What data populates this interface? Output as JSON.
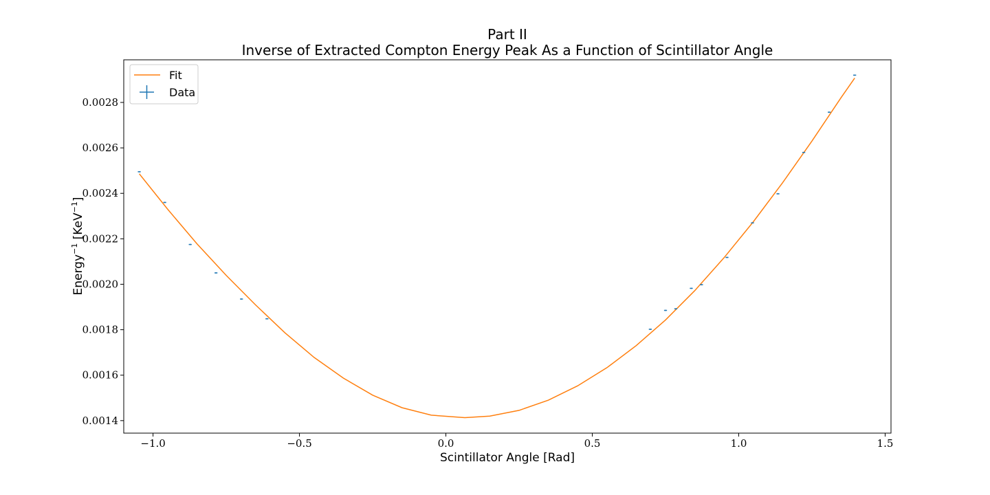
{
  "chart_data": {
    "type": "scatter",
    "title": "Part II",
    "subtitle": "Inverse of Extracted Compton Energy Peak As a Function of Scintillator Angle",
    "xlabel": "Scintillator Angle [Rad]",
    "ylabel_base": "Energy",
    "ylabel_exp": "−1",
    "ylabel_unit_open": " [KeV",
    "ylabel_unit_close": "]",
    "xlim": [
      -1.1,
      1.52
    ],
    "ylim": [
      0.001345,
      0.0029875
    ],
    "x_ticks": [
      -1.0,
      -0.5,
      0.0,
      0.5,
      1.0,
      1.5
    ],
    "x_tick_labels": [
      "−1.0",
      "−0.5",
      "0.0",
      "0.5",
      "1.0",
      "1.5"
    ],
    "y_ticks": [
      0.0014,
      0.0016,
      0.0018,
      0.002,
      0.0022,
      0.0024,
      0.0026,
      0.0028
    ],
    "y_tick_labels": [
      "0.0014",
      "0.0016",
      "0.0018",
      "0.0020",
      "0.0022",
      "0.0024",
      "0.0026",
      "0.0028"
    ],
    "grid": false,
    "legend_position": "top-left",
    "series": [
      {
        "name": "Fit",
        "kind": "line",
        "color": "#ff7f0e",
        "x": [
          -1.047,
          -0.95,
          -0.85,
          -0.75,
          -0.65,
          -0.55,
          -0.45,
          -0.35,
          -0.25,
          -0.15,
          -0.05,
          0.065,
          0.15,
          0.25,
          0.35,
          0.45,
          0.55,
          0.65,
          0.75,
          0.85,
          0.95,
          1.05,
          1.15,
          1.25,
          1.35,
          1.396
        ],
        "y": [
          0.002486,
          0.00233,
          0.002178,
          0.002039,
          0.001909,
          0.001787,
          0.001678,
          0.001587,
          0.001512,
          0.001457,
          0.001424,
          0.001413,
          0.00142,
          0.001445,
          0.00149,
          0.001553,
          0.001633,
          0.00173,
          0.001843,
          0.001972,
          0.002117,
          0.002275,
          0.002447,
          0.00263,
          0.002822,
          0.002907
        ]
      },
      {
        "name": "Data",
        "kind": "errorbar",
        "color": "#1f77b4",
        "x": [
          -1.047,
          -0.96,
          -0.873,
          -0.785,
          -0.698,
          -0.611,
          0.698,
          0.75,
          0.785,
          0.838,
          0.873,
          0.96,
          1.047,
          1.134,
          1.222,
          1.309,
          1.396
        ],
        "y": [
          0.002495,
          0.00236,
          0.002175,
          0.00205,
          0.001935,
          0.001848,
          0.001802,
          0.001885,
          0.001892,
          0.001982,
          0.001998,
          0.002118,
          0.00227,
          0.002398,
          0.00258,
          0.002757,
          0.00292
        ],
        "xerr": 0.005,
        "yerr": 2.5e-06
      }
    ]
  }
}
